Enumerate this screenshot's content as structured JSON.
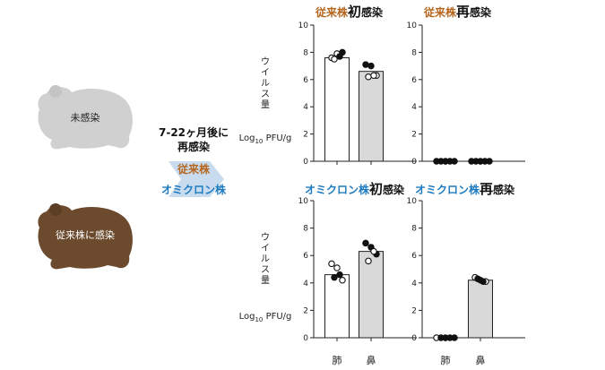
{
  "left": {
    "hamster_naive_label": "未感染",
    "hamster_infected_label": "従来株に感染",
    "reinfection_line1": "7-22ヶ月後に",
    "reinfection_line2": "再感染",
    "strain_conventional": "従来株",
    "strain_omicron": "オミクロン株"
  },
  "colors": {
    "conventional": "#b5651d",
    "omicron": "#1f7bbf",
    "hamster_gray": "#d0d0d0",
    "hamster_brown": "#6b4a2e",
    "bar_gray": "#d9d9d9",
    "arrow": "#c9dcef"
  },
  "axis": {
    "ylabel_vertical": "ウイルス量",
    "ylabel_unit_log": "Log",
    "ylabel_unit_sub": "10",
    "ylabel_unit_rest": " PFU/g",
    "yticks": [
      "0",
      "2",
      "4",
      "6",
      "8",
      "10"
    ],
    "categories": [
      "肺",
      "鼻"
    ]
  },
  "chart_data": [
    {
      "type": "bar",
      "title_strain": "従来株",
      "title_strong": "初",
      "title_tail": "感染",
      "strain": "conventional",
      "categories": [
        "肺",
        "鼻"
      ],
      "values": [
        7.6,
        6.6
      ],
      "ylim": [
        0,
        10
      ],
      "points": [
        {
          "x": 0,
          "y": [
            7.6,
            7.9,
            8.0,
            7.5,
            7.7
          ],
          "filled": [
            false,
            false,
            true,
            false,
            true
          ]
        },
        {
          "x": 1,
          "y": [
            7.1,
            7.0,
            6.3,
            6.2,
            6.3
          ],
          "filled": [
            true,
            true,
            false,
            false,
            false
          ]
        }
      ]
    },
    {
      "type": "bar",
      "title_strain": "従来株",
      "title_strong": "再",
      "title_tail": "感染",
      "strain": "conventional",
      "categories": [
        "肺",
        "鼻"
      ],
      "values": [
        0,
        0
      ],
      "ylim": [
        0,
        10
      ],
      "points": [
        {
          "x": 0,
          "y": [
            0,
            0,
            0,
            0,
            0
          ],
          "filled": [
            true,
            true,
            true,
            true,
            true
          ]
        },
        {
          "x": 1,
          "y": [
            0,
            0,
            0,
            0,
            0
          ],
          "filled": [
            true,
            true,
            true,
            true,
            true
          ]
        }
      ]
    },
    {
      "type": "bar",
      "title_strain": "オミクロン株",
      "title_strong": "初",
      "title_tail": "感染",
      "strain": "omicron",
      "categories": [
        "肺",
        "鼻"
      ],
      "values": [
        4.6,
        6.3
      ],
      "ylim": [
        0,
        10
      ],
      "points": [
        {
          "x": 0,
          "y": [
            5.4,
            5.1,
            4.2,
            4.4,
            4.6
          ],
          "filled": [
            false,
            false,
            false,
            true,
            true
          ]
        },
        {
          "x": 1,
          "y": [
            6.9,
            6.6,
            6.1,
            5.6,
            6.3
          ],
          "filled": [
            true,
            true,
            true,
            false,
            false
          ]
        }
      ]
    },
    {
      "type": "bar",
      "title_strain": "オミクロン株",
      "title_strong": "再",
      "title_tail": "感染",
      "strain": "omicron",
      "categories": [
        "肺",
        "鼻"
      ],
      "values": [
        0,
        4.2
      ],
      "ylim": [
        0,
        10
      ],
      "points": [
        {
          "x": 0,
          "y": [
            0,
            0,
            0,
            0,
            0
          ],
          "filled": [
            false,
            true,
            true,
            true,
            true
          ]
        },
        {
          "x": 1,
          "y": [
            4.4,
            4.2,
            4.1,
            4.3,
            4.1
          ],
          "filled": [
            false,
            true,
            false,
            true,
            true
          ]
        }
      ]
    }
  ]
}
